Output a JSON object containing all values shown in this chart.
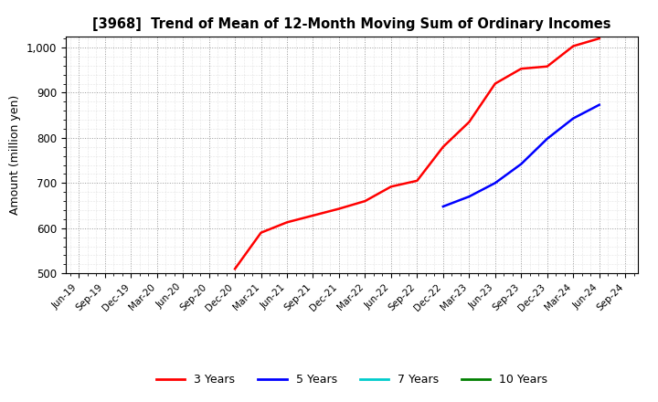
{
  "title": "[3968]  Trend of Mean of 12-Month Moving Sum of Ordinary Incomes",
  "ylabel": "Amount (million yen)",
  "ylim": [
    500,
    1025
  ],
  "yticks": [
    500,
    600,
    700,
    800,
    900,
    1000
  ],
  "background_color": "#ffffff",
  "grid_color": "#999999",
  "series": {
    "3 Years": {
      "color": "#ff0000",
      "x": [
        "Dec-20",
        "Mar-21",
        "Jun-21",
        "Sep-21",
        "Dec-21",
        "Mar-22",
        "Jun-22",
        "Sep-22",
        "Dec-22",
        "Mar-23",
        "Jun-23",
        "Sep-23",
        "Dec-23",
        "Mar-24",
        "Jun-24"
      ],
      "y": [
        510,
        590,
        613,
        628,
        643,
        660,
        692,
        705,
        780,
        835,
        920,
        953,
        958,
        1003,
        1020
      ]
    },
    "5 Years": {
      "color": "#0000ff",
      "x": [
        "Dec-22",
        "Mar-23",
        "Jun-23",
        "Sep-23",
        "Dec-23",
        "Mar-24",
        "Jun-24"
      ],
      "y": [
        648,
        670,
        700,
        742,
        798,
        843,
        873
      ]
    },
    "7 Years": {
      "color": "#00cccc",
      "x": [],
      "y": []
    },
    "10 Years": {
      "color": "#008000",
      "x": [],
      "y": []
    }
  },
  "x_tick_labels": [
    "Jun-19",
    "Sep-19",
    "Dec-19",
    "Mar-20",
    "Jun-20",
    "Sep-20",
    "Dec-20",
    "Mar-21",
    "Jun-21",
    "Sep-21",
    "Dec-21",
    "Mar-22",
    "Jun-22",
    "Sep-22",
    "Dec-22",
    "Mar-23",
    "Jun-23",
    "Sep-23",
    "Dec-23",
    "Mar-24",
    "Jun-24",
    "Sep-24"
  ],
  "legend_labels": [
    "3 Years",
    "5 Years",
    "7 Years",
    "10 Years"
  ],
  "legend_colors": [
    "#ff0000",
    "#0000ff",
    "#00cccc",
    "#008000"
  ]
}
